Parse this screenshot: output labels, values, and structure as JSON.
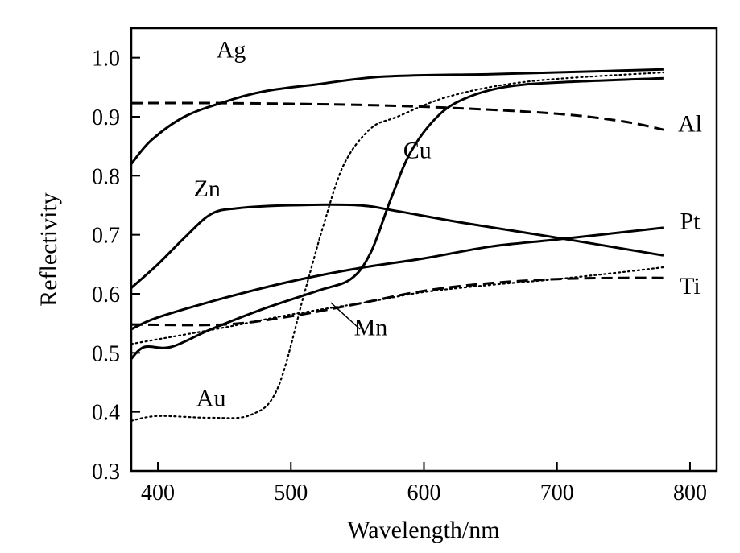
{
  "chart_data": {
    "type": "line",
    "title": "",
    "xlabel": "Wavelength/nm",
    "ylabel": "Reflectivity",
    "xlim": [
      380,
      820
    ],
    "ylim": [
      0.3,
      1.05
    ],
    "xticks": [
      400,
      500,
      600,
      700,
      800
    ],
    "xtick_labels": [
      "400",
      "500",
      "600",
      "700",
      "800"
    ],
    "yticks": [
      0.3,
      0.4,
      0.5,
      0.6,
      0.7,
      0.8,
      0.9,
      1.0
    ],
    "ytick_labels": [
      "0.3",
      "0.4",
      "0.5",
      "0.6",
      "0.7",
      "0.8",
      "0.9",
      "1.0"
    ],
    "grid": false,
    "legend": "none",
    "series": [
      {
        "name": "Ag",
        "style": "solid",
        "label_at": [
          {
            "x": 455,
            "y": 1.0
          }
        ],
        "x": [
          380,
          395,
          420,
          450,
          480,
          520,
          570,
          650,
          700,
          780
        ],
        "y": [
          0.82,
          0.86,
          0.9,
          0.925,
          0.943,
          0.955,
          0.968,
          0.972,
          0.975,
          0.98
        ]
      },
      {
        "name": "Al",
        "style": "dashed",
        "label_at": [
          {
            "x": 800,
            "y": 0.875
          }
        ],
        "x": [
          380,
          450,
          550,
          620,
          700,
          750,
          780
        ],
        "y": [
          0.923,
          0.923,
          0.92,
          0.915,
          0.905,
          0.892,
          0.878
        ]
      },
      {
        "name": "Cu",
        "style": "solid",
        "label_at": [
          {
            "x": 595,
            "y": 0.83
          }
        ],
        "x": [
          380,
          390,
          410,
          440,
          480,
          520,
          545,
          560,
          575,
          590,
          610,
          630,
          660,
          700,
          780
        ],
        "y": [
          0.49,
          0.51,
          0.51,
          0.54,
          0.575,
          0.605,
          0.625,
          0.67,
          0.76,
          0.84,
          0.9,
          0.93,
          0.95,
          0.958,
          0.965
        ]
      },
      {
        "name": "Au",
        "style": "dotted",
        "label_at": [
          {
            "x": 440,
            "y": 0.41
          }
        ],
        "x": [
          380,
          400,
          440,
          470,
          490,
          510,
          525,
          540,
          560,
          580,
          620,
          680,
          780
        ],
        "y": [
          0.385,
          0.393,
          0.39,
          0.395,
          0.44,
          0.6,
          0.72,
          0.82,
          0.88,
          0.9,
          0.935,
          0.96,
          0.975
        ]
      },
      {
        "name": "Zn",
        "style": "solid",
        "label_at": [
          {
            "x": 437,
            "y": 0.765
          }
        ],
        "x": [
          380,
          400,
          420,
          440,
          460,
          500,
          550,
          580,
          630,
          700,
          780
        ],
        "y": [
          0.61,
          0.65,
          0.695,
          0.735,
          0.745,
          0.75,
          0.75,
          0.74,
          0.72,
          0.695,
          0.665
        ]
      },
      {
        "name": "Pt",
        "style": "solid",
        "label_at": [
          {
            "x": 800,
            "y": 0.71
          }
        ],
        "x": [
          380,
          400,
          450,
          500,
          550,
          600,
          650,
          700,
          780
        ],
        "y": [
          0.54,
          0.56,
          0.593,
          0.621,
          0.643,
          0.66,
          0.68,
          0.692,
          0.712
        ]
      },
      {
        "name": "Ti",
        "style": "dashed",
        "label_at": [
          {
            "x": 800,
            "y": 0.6
          }
        ],
        "x": [
          380,
          450,
          500,
          550,
          600,
          650,
          700,
          750,
          780
        ],
        "y": [
          0.548,
          0.548,
          0.562,
          0.583,
          0.605,
          0.618,
          0.625,
          0.627,
          0.627
        ]
      },
      {
        "name": "Mn",
        "style": "dotted",
        "label_at": [
          {
            "x": 560,
            "y": 0.53
          }
        ],
        "x": [
          380,
          450,
          500,
          560,
          600,
          650,
          700,
          750,
          780
        ],
        "y": [
          0.515,
          0.543,
          0.565,
          0.587,
          0.603,
          0.615,
          0.625,
          0.637,
          0.645
        ]
      }
    ],
    "annotations": [
      {
        "target": "Mn",
        "from": [
          552,
          0.54
        ],
        "to": [
          530,
          0.585
        ]
      }
    ]
  }
}
